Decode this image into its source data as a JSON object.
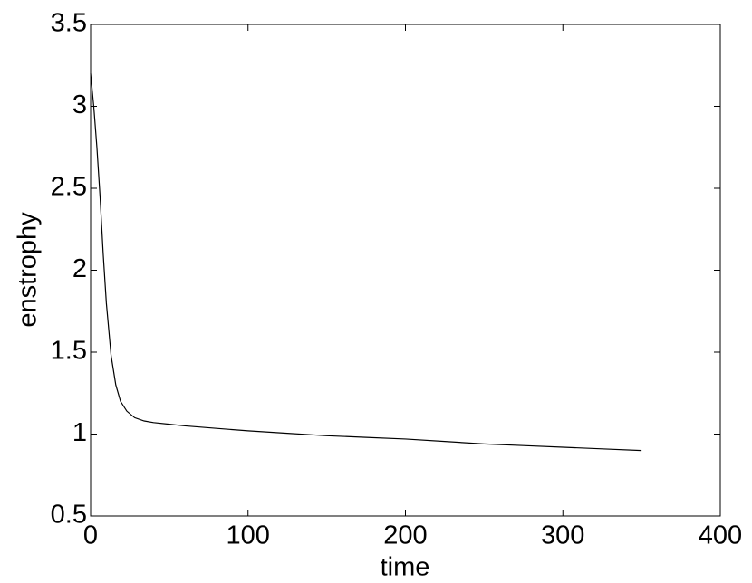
{
  "chart_data": {
    "type": "line",
    "x_label": "time",
    "y_label": "enstrophy",
    "x": [
      0,
      2,
      4,
      6,
      8,
      10,
      13,
      16,
      19,
      23,
      28,
      34,
      40,
      50,
      60,
      80,
      100,
      125,
      150,
      175,
      200,
      225,
      250,
      275,
      300,
      325,
      350
    ],
    "series": [
      {
        "color": "#000000",
        "values": [
          3.2,
          3.0,
          2.75,
          2.45,
          2.1,
          1.8,
          1.48,
          1.3,
          1.2,
          1.14,
          1.1,
          1.08,
          1.07,
          1.06,
          1.05,
          1.035,
          1.02,
          1.005,
          0.99,
          0.98,
          0.97,
          0.955,
          0.94,
          0.93,
          0.92,
          0.91,
          0.9
        ]
      }
    ],
    "xlim": [
      0,
      400
    ],
    "xticks": [
      0,
      100,
      200,
      300,
      400
    ],
    "ylim": [
      0.5,
      3.5
    ],
    "yticks": [
      0.5,
      1,
      1.5,
      2,
      2.5,
      3,
      3.5
    ],
    "grid": false
  }
}
